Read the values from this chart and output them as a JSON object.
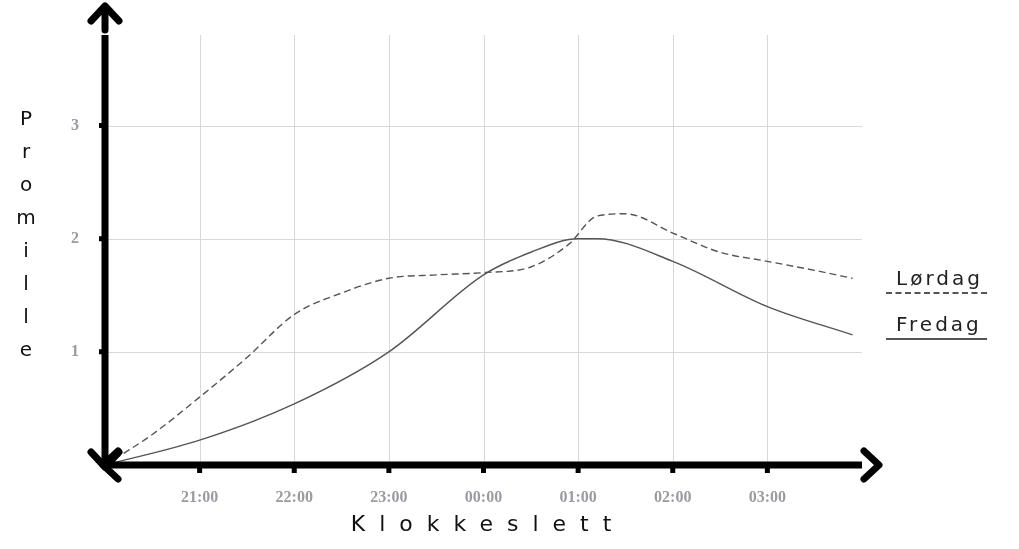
{
  "chart_data": {
    "type": "line",
    "xlabel": "Klokkeslett",
    "ylabel": "Promille",
    "xlim": [
      "--01-01T20:00",
      "--01-02T04:00"
    ],
    "ylim": [
      0,
      3.8
    ],
    "xticks": [
      {
        "value": "--01-01T21:00",
        "label": "21:00"
      },
      {
        "value": "--01-01T22:00",
        "label": "22:00"
      },
      {
        "value": "--01-01T23:00",
        "label": "23:00"
      },
      {
        "value": "--01-02T00:00",
        "label": "00:00"
      },
      {
        "value": "--01-02T01:00",
        "label": "01:00"
      },
      {
        "value": "--01-02T02:00",
        "label": "02:00"
      },
      {
        "value": "--01-02T03:00",
        "label": "03:00"
      }
    ],
    "yticks": [
      1,
      2,
      3
    ],
    "grid": true,
    "legend": "right",
    "marker": "none",
    "series": [
      {
        "name": "Lørdag",
        "color": "#555555",
        "line_style": "dashed",
        "x": [
          "--01-01T20:00",
          "--01-01T20:30",
          "--01-01T21:00",
          "--01-01T21:30",
          "--01-01T22:00",
          "--01-01T22:30",
          "--01-01T23:00",
          "--01-01T23:30",
          "--01-02T00:00",
          "--01-02T00:30",
          "--01-02T00:54",
          "--01-02T01:12",
          "--01-02T01:30",
          "--01-02T02:00",
          "--01-02T02:30",
          "--01-02T03:00",
          "--01-02T03:30",
          "--01-02T03:54"
        ],
        "values": [
          0,
          0.27,
          0.6,
          0.95,
          1.33,
          1.52,
          1.65,
          1.68,
          1.7,
          1.75,
          1.95,
          2.2,
          2.22,
          2.05,
          1.88,
          1.8,
          1.72,
          1.65
        ]
      },
      {
        "name": "Fredag",
        "color": "#555555",
        "line_style": "solid",
        "x": [
          "--01-01T20:00",
          "--01-01T21:00",
          "--01-01T22:00",
          "--01-01T23:00",
          "--01-02T00:00",
          "--01-02T00:30",
          "--01-02T01:00",
          "--01-02T01:12",
          "--01-02T02:00",
          "--01-02T03:00",
          "--01-02T03:54"
        ],
        "values": [
          0,
          0.22,
          0.54,
          1.0,
          1.68,
          1.88,
          2.0,
          2.0,
          1.8,
          1.4,
          1.15
        ]
      }
    ]
  }
}
